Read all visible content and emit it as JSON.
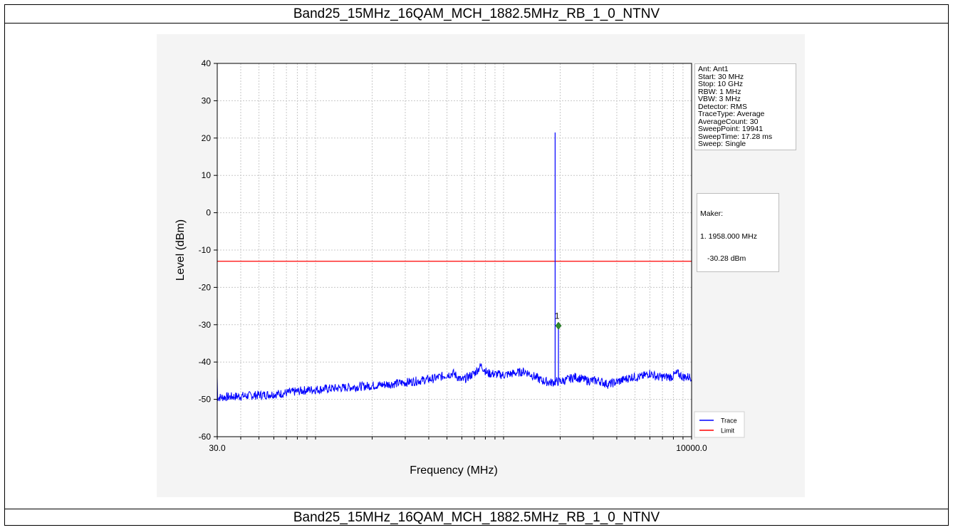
{
  "caption_top": "Band25_15MHz_16QAM_MCH_1882.5MHz_RB_1_0_NTNV",
  "caption_bottom": "Band25_15MHz_16QAM_MCH_1882.5MHz_RB_1_0_NTNV",
  "instrument_settings": [
    "Ant: Ant1",
    "Start: 30 MHz",
    "Stop: 10 GHz",
    "RBW: 1 MHz",
    "VBW: 3 MHz",
    "Detector: RMS",
    "TraceType: Average",
    "AverageCount: 30",
    "SweepPoint: 19941",
    "SweepTime: 17.28 ms",
    "Sweep: Single"
  ],
  "marker_readout": {
    "title": "Maker:",
    "line1": "1. 1958.000 MHz",
    "line2": "-30.28 dBm"
  },
  "chart_data": {
    "type": "line",
    "xlabel": "Frequency (MHz)",
    "ylabel": "Level (dBm)",
    "xscale": "log",
    "xlim": [
      30,
      10000
    ],
    "ylim": [
      -60,
      40
    ],
    "x_tick_labels": [
      "30.0",
      "10000.0"
    ],
    "y_ticks": [
      40,
      30,
      20,
      10,
      0,
      -10,
      -20,
      -30,
      -40,
      -50,
      -60
    ],
    "grid": true,
    "legend_position": "bottom-right",
    "series": [
      {
        "name": "Trace",
        "color": "#0000ff",
        "x": [
          30,
          45,
          65,
          90,
          130,
          180,
          240,
          300,
          420,
          540,
          600,
          700,
          760,
          820,
          1000,
          1300,
          1600,
          1790,
          1880,
          1958,
          2100,
          2400,
          2800,
          3200,
          3600,
          4200,
          4800,
          5400,
          6000,
          6600,
          7200,
          7800,
          8400,
          9000,
          9600,
          10000
        ],
        "y": [
          -49.5,
          -49,
          -48.5,
          -47.5,
          -47,
          -46.5,
          -46,
          -45.5,
          -44.5,
          -43,
          -45,
          -43,
          -41,
          -43,
          -43.5,
          -42.5,
          -45,
          -45.5,
          21.5,
          -30.28,
          -45,
          -44,
          -45,
          -45,
          -46,
          -45,
          -44,
          -44,
          -43,
          -44,
          -44,
          -44,
          -43,
          -44,
          -44,
          -44
        ]
      },
      {
        "name": "Limit",
        "color": "#ff0000",
        "x": [
          30,
          10000
        ],
        "y": [
          -13,
          -13
        ]
      }
    ],
    "markers": [
      {
        "label": "1",
        "x": 1958,
        "y": -30.28,
        "color": "#2e8b2e"
      }
    ]
  }
}
